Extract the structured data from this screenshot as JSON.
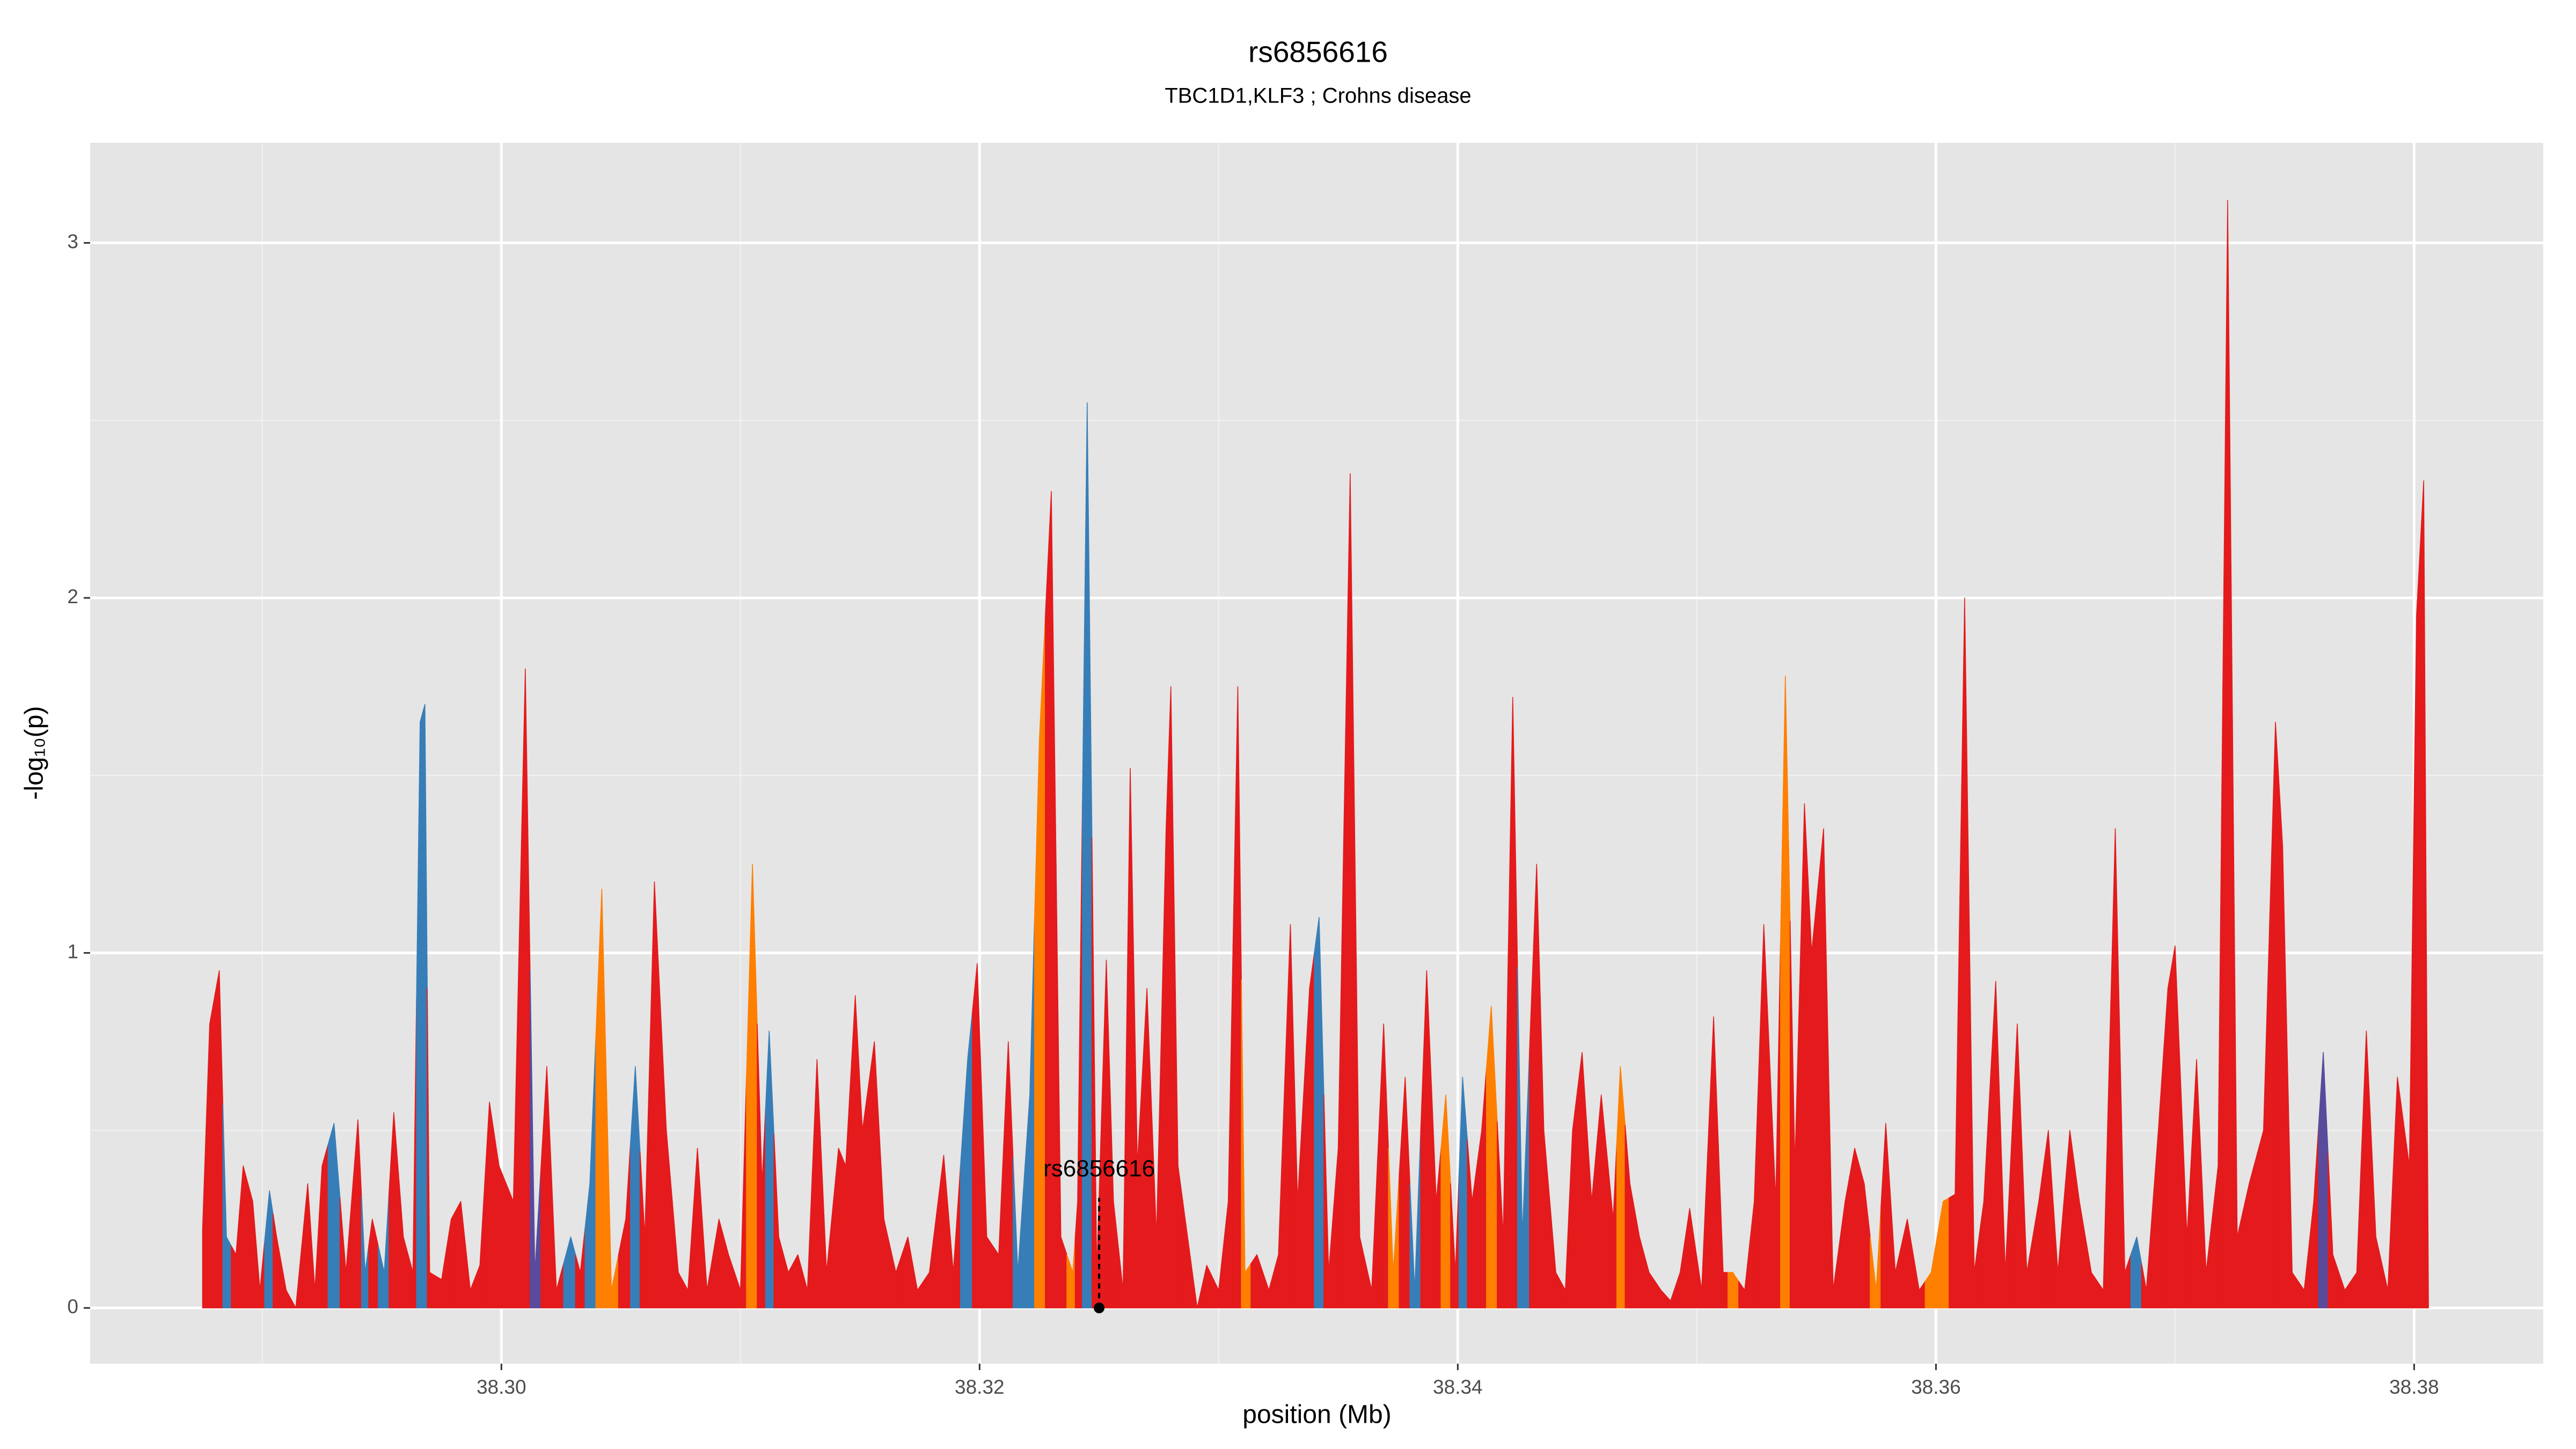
{
  "chart_data": {
    "type": "area",
    "title": "rs6856616",
    "subtitle": "TBC1D1,KLF3 ; Crohns disease",
    "x_label": "position (Mb)",
    "y_label": "-log₁₀(p)",
    "xlim": [
      38.2828,
      38.3854
    ],
    "ylim": [
      -0.157,
      3.282
    ],
    "xticks": [
      {
        "value": 38.3,
        "label": "38.30"
      },
      {
        "value": 38.32,
        "label": "38.32"
      },
      {
        "value": 38.34,
        "label": "38.34"
      },
      {
        "value": 38.36,
        "label": "38.36"
      },
      {
        "value": 38.38,
        "label": "38.38"
      }
    ],
    "yticks": [
      0,
      1,
      2,
      3
    ],
    "xminor": [
      38.29,
      38.31,
      38.33,
      38.35,
      38.37
    ],
    "yminor": [
      0.5,
      1.5,
      2.5
    ],
    "grid": true,
    "x": [
      38.2875,
      38.2878,
      38.2882,
      38.2885,
      38.2889,
      38.2892,
      38.2896,
      38.2899,
      38.2903,
      38.2906,
      38.291,
      38.2914,
      38.2919,
      38.2922,
      38.2925,
      38.293,
      38.2935,
      38.294,
      38.2943,
      38.2946,
      38.2951,
      38.2955,
      38.2959,
      38.2963,
      38.2966,
      38.2968,
      38.297,
      38.2975,
      38.2979,
      38.2983,
      38.2987,
      38.2991,
      38.2995,
      38.2999,
      38.3005,
      38.301,
      38.3014,
      38.3019,
      38.3023,
      38.3029,
      38.3033,
      38.3037,
      38.3042,
      38.3046,
      38.3052,
      38.3056,
      38.306,
      38.3064,
      38.3069,
      38.3074,
      38.3078,
      38.3082,
      38.3086,
      38.3091,
      38.3095,
      38.31,
      38.3105,
      38.3109,
      38.3112,
      38.3116,
      38.312,
      38.3124,
      38.3128,
      38.3132,
      38.3136,
      38.3141,
      38.3144,
      38.3148,
      38.3151,
      38.3156,
      38.316,
      38.3165,
      38.317,
      38.3174,
      38.3179,
      38.3185,
      38.3189,
      38.3195,
      38.3199,
      38.3203,
      38.3208,
      38.3212,
      38.3216,
      38.3221,
      38.3225,
      38.323,
      38.3234,
      38.3239,
      38.3241,
      38.3245,
      38.3249,
      38.3253,
      38.3256,
      38.326,
      38.3263,
      38.3266,
      38.327,
      38.3274,
      38.3278,
      38.328,
      38.3283,
      38.3287,
      38.3291,
      38.3295,
      38.33,
      38.3304,
      38.3308,
      38.3311,
      38.3316,
      38.3321,
      38.3325,
      38.333,
      38.3333,
      38.3338,
      38.3342,
      38.3346,
      38.335,
      38.3355,
      38.3359,
      38.3364,
      38.3369,
      38.3373,
      38.3378,
      38.3382,
      38.3387,
      38.3391,
      38.3395,
      38.3399,
      38.3402,
      38.3406,
      38.341,
      38.3414,
      38.3419,
      38.3423,
      38.3427,
      38.3433,
      38.3436,
      38.3441,
      38.3445,
      38.3448,
      38.3452,
      38.3456,
      38.346,
      38.3465,
      38.3468,
      38.3472,
      38.3476,
      38.348,
      38.3485,
      38.3489,
      38.3493,
      38.3497,
      38.3502,
      38.3507,
      38.3511,
      38.3515,
      38.352,
      38.3524,
      38.3528,
      38.3533,
      38.3537,
      38.3541,
      38.3545,
      38.3548,
      38.3553,
      38.3557,
      38.3562,
      38.3566,
      38.357,
      38.3575,
      38.3579,
      38.3583,
      38.3588,
      38.3593,
      38.3598,
      38.3603,
      38.3608,
      38.3612,
      38.3616,
      38.362,
      38.3625,
      38.3629,
      38.3634,
      38.3638,
      38.3643,
      38.3647,
      38.3651,
      38.3656,
      38.366,
      38.3665,
      38.367,
      38.3675,
      38.3679,
      38.3684,
      38.3688,
      38.3693,
      38.3697,
      38.37,
      38.3705,
      38.3709,
      38.3713,
      38.3718,
      38.3722,
      38.3726,
      38.3731,
      38.3737,
      38.3742,
      38.3745,
      38.3749,
      38.3754,
      38.3758,
      38.3762,
      38.3766,
      38.3771,
      38.3776,
      38.378,
      38.3784,
      38.3789,
      38.3793,
      38.3798,
      38.3801,
      38.3804,
      38.3806
    ],
    "values": [
      0.22,
      0.8,
      0.95,
      0.2,
      0.15,
      0.4,
      0.3,
      0.05,
      0.33,
      0.2,
      0.05,
      0,
      0.35,
      0.05,
      0.4,
      0.52,
      0.1,
      0.53,
      0.1,
      0.25,
      0.1,
      0.55,
      0.2,
      0.1,
      1.65,
      1.7,
      0.1,
      0.08,
      0.25,
      0.3,
      0.05,
      0.12,
      0.58,
      0.4,
      0.3,
      1.8,
      0.1,
      0.68,
      0.05,
      0.2,
      0.1,
      0.35,
      1.18,
      0.05,
      0.25,
      0.68,
      0.2,
      1.2,
      0.5,
      0.1,
      0.05,
      0.45,
      0.05,
      0.25,
      0.15,
      0.05,
      1.25,
      0.35,
      0.78,
      0.2,
      0.1,
      0.15,
      0.05,
      0.7,
      0.1,
      0.45,
      0.4,
      0.88,
      0.5,
      0.75,
      0.25,
      0.1,
      0.2,
      0.05,
      0.1,
      0.43,
      0.1,
      0.7,
      0.97,
      0.2,
      0.15,
      0.75,
      0.1,
      0.6,
      1.6,
      2.3,
      0.2,
      0.1,
      0.3,
      2.55,
      0.1,
      0.98,
      0.3,
      0.05,
      1.52,
      0.4,
      0.9,
      0.2,
      1.35,
      1.75,
      0.4,
      0.2,
      0,
      0.12,
      0.05,
      0.3,
      1.75,
      0.1,
      0.15,
      0.05,
      0.15,
      1.08,
      0.3,
      0.9,
      1.1,
      0.1,
      0.45,
      2.35,
      0.2,
      0.05,
      0.8,
      0.1,
      0.65,
      0.05,
      0.95,
      0.3,
      0.6,
      0.1,
      0.65,
      0.3,
      0.5,
      0.85,
      0.2,
      1.72,
      0.2,
      1.25,
      0.5,
      0.1,
      0.05,
      0.5,
      0.72,
      0.3,
      0.6,
      0.25,
      0.68,
      0.35,
      0.2,
      0.1,
      0.05,
      0.02,
      0.1,
      0.28,
      0.05,
      0.82,
      0.1,
      0.1,
      0.05,
      0.3,
      1.08,
      0.3,
      1.78,
      0.4,
      1.42,
      1,
      1.35,
      0.05,
      0.3,
      0.45,
      0.35,
      0.05,
      0.52,
      0.1,
      0.25,
      0.05,
      0.1,
      0.3,
      0.32,
      2,
      0.1,
      0.3,
      0.92,
      0.1,
      0.8,
      0.1,
      0.3,
      0.5,
      0.1,
      0.5,
      0.3,
      0.1,
      0.05,
      1.35,
      0.1,
      0.2,
      0.05,
      0.5,
      0.9,
      1.02,
      0.2,
      0.7,
      0.1,
      0.4,
      3.12,
      0.2,
      0.35,
      0.5,
      1.65,
      1.3,
      0.1,
      0.05,
      0.3,
      0.72,
      0.15,
      0.05,
      0.1,
      0.78,
      0.2,
      0.05,
      0.65,
      0.4,
      1.95,
      2.33,
      0
    ],
    "point_colors": [
      "#e41a1c",
      "#e41a1c",
      "#e41a1c",
      "#377eb8",
      "#e41a1c",
      "#e41a1c",
      "#e41a1c",
      "#e41a1c",
      "#377eb8",
      "#e41a1c",
      "#e41a1c",
      "#e41a1c",
      "#e41a1c",
      "#e41a1c",
      "#e41a1c",
      "#377eb8",
      "#e41a1c",
      "#e41a1c",
      "#377eb8",
      "#e41a1c",
      "#377eb8",
      "#e41a1c",
      "#e41a1c",
      "#e41a1c",
      "#377eb8",
      "#377eb8",
      "#e41a1c",
      "#e41a1c",
      "#e41a1c",
      "#e41a1c",
      "#e41a1c",
      "#e41a1c",
      "#e41a1c",
      "#e41a1c",
      "#e41a1c",
      "#e41a1c",
      "#5a4a9c",
      "#e41a1c",
      "#e41a1c",
      "#377eb8",
      "#e41a1c",
      "#377eb8",
      "#ff7f00",
      "#ff7f00",
      "#e41a1c",
      "#377eb8",
      "#e41a1c",
      "#e41a1c",
      "#e41a1c",
      "#e41a1c",
      "#e41a1c",
      "#e41a1c",
      "#e41a1c",
      "#e41a1c",
      "#e41a1c",
      "#e41a1c",
      "#ff7f00",
      "#e41a1c",
      "#377eb8",
      "#e41a1c",
      "#e41a1c",
      "#e41a1c",
      "#e41a1c",
      "#e41a1c",
      "#e41a1c",
      "#e41a1c",
      "#e41a1c",
      "#e41a1c",
      "#e41a1c",
      "#e41a1c",
      "#e41a1c",
      "#e41a1c",
      "#e41a1c",
      "#e41a1c",
      "#e41a1c",
      "#e41a1c",
      "#e41a1c",
      "#377eb8",
      "#e41a1c",
      "#e41a1c",
      "#e41a1c",
      "#e41a1c",
      "#377eb8",
      "#377eb8",
      "#ff7f00",
      "#e41a1c",
      "#e41a1c",
      "#ff7f00",
      "#e41a1c",
      "#377eb8",
      "#e41a1c",
      "#e41a1c",
      "#e41a1c",
      "#e41a1c",
      "#e41a1c",
      "#e41a1c",
      "#e41a1c",
      "#e41a1c",
      "#e41a1c",
      "#e41a1c",
      "#e41a1c",
      "#e41a1c",
      "#e41a1c",
      "#e41a1c",
      "#e41a1c",
      "#e41a1c",
      "#e41a1c",
      "#ff7f00",
      "#e41a1c",
      "#e41a1c",
      "#e41a1c",
      "#e41a1c",
      "#e41a1c",
      "#e41a1c",
      "#377eb8",
      "#e41a1c",
      "#e41a1c",
      "#e41a1c",
      "#e41a1c",
      "#e41a1c",
      "#e41a1c",
      "#ff7f00",
      "#e41a1c",
      "#377eb8",
      "#e41a1c",
      "#e41a1c",
      "#ff7f00",
      "#e41a1c",
      "#377eb8",
      "#e41a1c",
      "#e41a1c",
      "#ff7f00",
      "#e41a1c",
      "#e41a1c",
      "#377eb8",
      "#e41a1c",
      "#e41a1c",
      "#e41a1c",
      "#e41a1c",
      "#e41a1c",
      "#e41a1c",
      "#e41a1c",
      "#e41a1c",
      "#e41a1c",
      "#ff7f00",
      "#e41a1c",
      "#e41a1c",
      "#e41a1c",
      "#e41a1c",
      "#e41a1c",
      "#e41a1c",
      "#e41a1c",
      "#e41a1c",
      "#e41a1c",
      "#e41a1c",
      "#ff7f00",
      "#e41a1c",
      "#e41a1c",
      "#e41a1c",
      "#e41a1c",
      "#ff7f00",
      "#e41a1c",
      "#e41a1c",
      "#e41a1c",
      "#e41a1c",
      "#e41a1c",
      "#e41a1c",
      "#e41a1c",
      "#e41a1c",
      "#ff7f00",
      "#e41a1c",
      "#e41a1c",
      "#e41a1c",
      "#e41a1c",
      "#ff7f00",
      "#ff7f00",
      "#e41a1c",
      "#e41a1c",
      "#e41a1c",
      "#e41a1c",
      "#e41a1c",
      "#e41a1c",
      "#e41a1c",
      "#e41a1c",
      "#e41a1c",
      "#e41a1c",
      "#e41a1c",
      "#e41a1c",
      "#e41a1c",
      "#e41a1c",
      "#e41a1c",
      "#e41a1c",
      "#e41a1c",
      "#377eb8",
      "#e41a1c",
      "#e41a1c",
      "#e41a1c",
      "#e41a1c",
      "#e41a1c",
      "#e41a1c",
      "#e41a1c",
      "#e41a1c",
      "#e41a1c",
      "#e41a1c",
      "#e41a1c",
      "#e41a1c",
      "#e41a1c",
      "#e41a1c",
      "#e41a1c",
      "#e41a1c",
      "#e41a1c",
      "#5a4a9c",
      "#e41a1c",
      "#e41a1c",
      "#e41a1c",
      "#e41a1c",
      "#e41a1c",
      "#e41a1c",
      "#e41a1c",
      "#e41a1c",
      "#e41a1c",
      "#e41a1c",
      "#e41a1c"
    ],
    "annotation": {
      "label": "rs6856616",
      "x": 38.325,
      "y": 0
    }
  }
}
